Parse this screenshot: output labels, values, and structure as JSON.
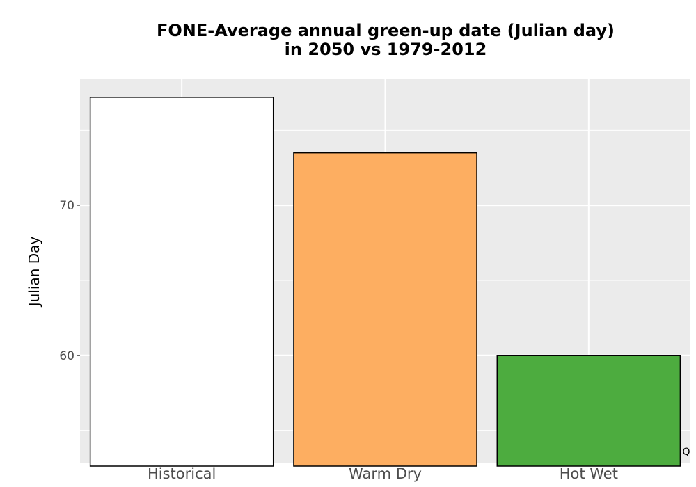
{
  "chart_data": {
    "type": "bar",
    "title_lines": [
      "FONE-Average annual green-up date (Julian day)",
      "in 2050 vs 1979-2012"
    ],
    "xlabel": "",
    "ylabel": "Julian Day",
    "categories": [
      "Historical",
      "Warm Dry",
      "Hot Wet"
    ],
    "values": [
      77.2,
      73.5,
      60.0
    ],
    "colors": [
      "#ffffff",
      "#fdae61",
      "#4dac3f"
    ],
    "bar_outline": "#000000",
    "ylim": [
      52.8,
      78.4
    ],
    "yticks": [
      60,
      70
    ],
    "ytick_labels": [
      "60",
      "70"
    ],
    "grid": true,
    "panel_background": "#ebebeb",
    "grid_color": "#ffffff"
  },
  "corner_mark": "Q"
}
